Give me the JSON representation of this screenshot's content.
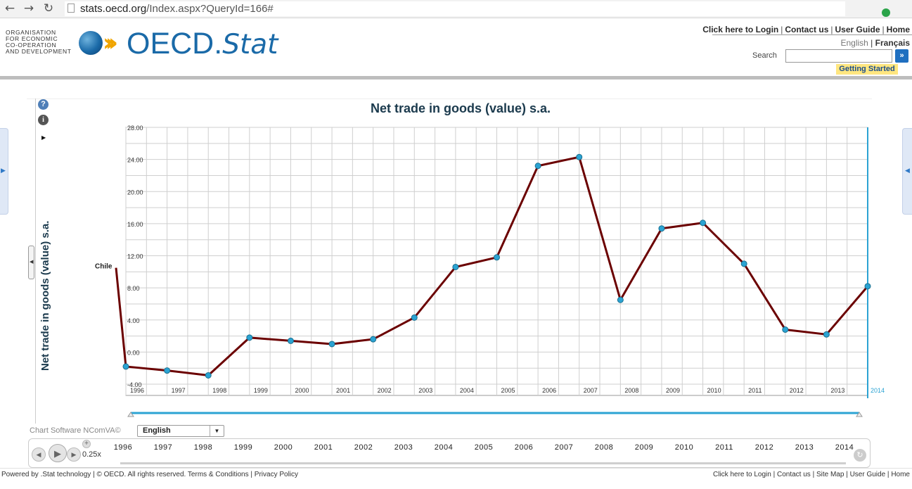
{
  "browser": {
    "url_host": "stats.oecd.org",
    "url_path": "/Index.aspx?QueryId=166#"
  },
  "header": {
    "org_lines": [
      "ORGANISATION",
      "FOR ECONOMIC",
      "CO-OPERATION",
      "AND DEVELOPMENT"
    ],
    "brand_main": "OECD.",
    "brand_stat": "Stat",
    "toplinks": [
      "Click here to Login",
      "Contact us",
      "User Guide",
      "Home"
    ],
    "lang_en": "English",
    "lang_fr": "Français",
    "search_label": "Search",
    "search_value": "",
    "search_go": "»",
    "getting_started": "Getting Started"
  },
  "chart_panel": {
    "tool_help": "?",
    "tool_info": "i",
    "tool_play": "▶",
    "footer_label": "Chart Software NComVA©",
    "language_selected": "English"
  },
  "chart_data": {
    "type": "line",
    "title": "Net trade in goods (value) s.a.",
    "ylabel": "Net trade in goods (value) s.a.",
    "xlabel": "",
    "series": [
      {
        "name": "Chile",
        "color": "#6b0000",
        "marker_color": "#2ba3d3",
        "x": [
          "1996",
          "1997",
          "1998",
          "1999",
          "2000",
          "2001",
          "2002",
          "2003",
          "2004",
          "2005",
          "2006",
          "2007",
          "2008",
          "2009",
          "2010",
          "2011",
          "2012",
          "2013",
          "2014"
        ],
        "values": [
          -1.8,
          -2.3,
          -2.9,
          1.8,
          1.4,
          1.0,
          1.6,
          4.3,
          10.6,
          11.8,
          23.2,
          24.3,
          6.5,
          15.4,
          16.1,
          11.0,
          2.8,
          2.2,
          8.2
        ]
      }
    ],
    "label_value": 10.5,
    "yticks": [
      "28.00",
      "24.00",
      "20.00",
      "16.00",
      "12.00",
      "8.00",
      "4.00",
      "0.00",
      "-4.00"
    ],
    "ylim": [
      -5.4,
      28.0
    ],
    "xticks": [
      "1996",
      "1997",
      "1998",
      "1999",
      "2000",
      "2001",
      "2002",
      "2003",
      "2004",
      "2005",
      "2006",
      "2007",
      "2008",
      "2009",
      "2010",
      "2011",
      "2012",
      "2013",
      "2014"
    ],
    "current_year": "2014",
    "grid": true,
    "grid_color": "#cfcfcf",
    "accent_color": "#2ba3d3"
  },
  "timeline": {
    "speed": "0.25x",
    "years": [
      "1996",
      "1997",
      "1998",
      "1999",
      "2000",
      "2001",
      "2002",
      "2003",
      "2004",
      "2005",
      "2006",
      "2007",
      "2008",
      "2009",
      "2010",
      "2011",
      "2012",
      "2013",
      "2014"
    ]
  },
  "footer": {
    "left": "Powered by .Stat technology | © OECD. All rights reserved.",
    "terms": "Terms & Conditions",
    "privacy": "Privacy Policy",
    "right_links": [
      "Click here to Login",
      "Contact us",
      "Site Map",
      "User Guide",
      "Home"
    ]
  }
}
